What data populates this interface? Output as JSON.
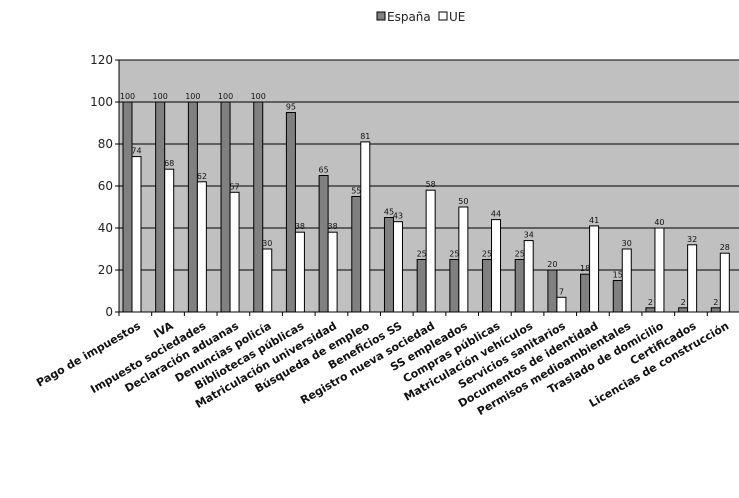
{
  "chart_data": {
    "type": "bar",
    "title": "",
    "xlabel": "",
    "ylabel": "",
    "ylim": [
      0,
      120
    ],
    "yticks": [
      0,
      20,
      40,
      60,
      80,
      100,
      120
    ],
    "grid": true,
    "legend": "top",
    "categories": [
      "Pago de impuestos",
      "IVA",
      "Impuesto sociedades",
      "Declaración aduanas",
      "Denuncias policía",
      "Bibliotecas públicas",
      "Matriculación universidad",
      "Búsqueda de empleo",
      "Beneficios SS",
      "Registro nueva sociedad",
      "SS empleados",
      "Compras públicas",
      "Matriculación vehículos",
      "Servicios sanitarios",
      "Documentos de identidad",
      "Permisos medioambientales",
      "Traslado de domicilio",
      "Certificados",
      "Licencias de construcción"
    ],
    "series": [
      {
        "name": "España",
        "color": "#808080",
        "values": [
          100,
          100,
          100,
          100,
          100,
          95,
          65,
          55,
          45,
          25,
          25,
          25,
          25,
          20,
          18,
          15,
          2,
          2,
          2
        ]
      },
      {
        "name": "UE",
        "color": "#ffffff",
        "values": [
          74,
          68,
          62,
          57,
          30,
          38,
          38,
          81,
          43,
          58,
          50,
          44,
          34,
          7,
          41,
          30,
          40,
          32,
          28
        ]
      }
    ],
    "data_labels": [
      [
        "100",
        "100",
        "100",
        "100",
        "100",
        "95",
        "65",
        "55",
        "45",
        "25",
        "25",
        "25",
        "25",
        "20",
        "18",
        "15",
        "2",
        "2",
        "2"
      ],
      [
        "74",
        "68",
        "62",
        "57",
        "30",
        "38",
        "38",
        "81",
        "43",
        "58",
        "50",
        "44",
        "34",
        "7",
        "41",
        "30",
        "40",
        "32",
        "28"
      ]
    ],
    "plot_background": "#c0c0c0"
  }
}
